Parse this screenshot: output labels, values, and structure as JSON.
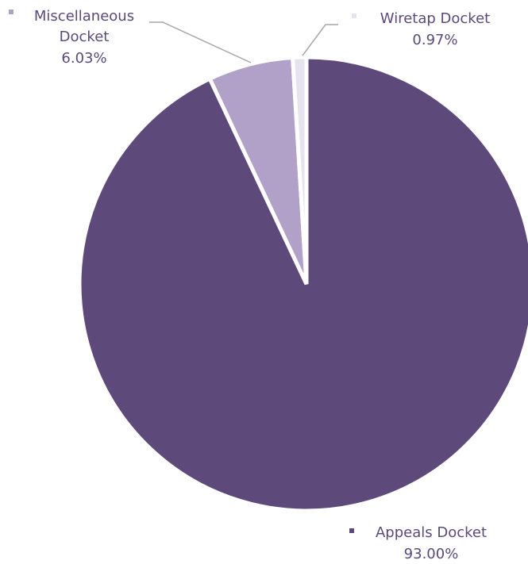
{
  "chart_data": {
    "type": "pie",
    "title": "",
    "legend": "none",
    "slices": [
      {
        "label": "Appeals Docket",
        "line1": "Appeals Docket",
        "line2": "",
        "pct_text": "93.00%",
        "value": 93.0,
        "color": "#5e4a7a"
      },
      {
        "label": "Miscellaneous Docket",
        "line1": "Miscellaneous",
        "line2": "Docket",
        "pct_text": "6.03%",
        "value": 6.03,
        "color": "#b1a1c8"
      },
      {
        "label": "Wiretap Docket",
        "line1": "Wiretap Docket",
        "line2": "",
        "pct_text": "0.97%",
        "value": 0.97,
        "color": "#e6e2ee"
      }
    ]
  }
}
